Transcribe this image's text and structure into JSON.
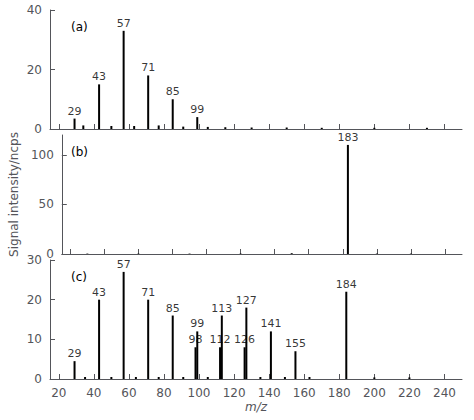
{
  "chart_data": [
    {
      "type": "bar",
      "title": "(a)",
      "x": [
        34,
        50,
        63,
        77,
        91,
        105,
        115,
        130,
        150,
        170,
        200,
        230,
        29,
        43,
        57,
        71,
        85,
        99
      ],
      "values": [
        1.2,
        1.0,
        1.0,
        1.2,
        0.8,
        0.7,
        0.6,
        0.5,
        0.5,
        0.4,
        0.4,
        0.4,
        3.5,
        15,
        33,
        18,
        10,
        4
      ],
      "color": "#000000",
      "xlim": [
        15,
        250
      ],
      "xticks": [
        20,
        40,
        60,
        80,
        100,
        120,
        140,
        160,
        180,
        200,
        220,
        240
      ],
      "ylim": [
        0,
        40
      ],
      "yticks": [
        0,
        20,
        40
      ],
      "grid": false,
      "tick_labels": "y",
      "annotations": [
        {
          "text": "29",
          "x": 29,
          "y": 3.5
        },
        {
          "text": "43",
          "x": 43,
          "y": 15
        },
        {
          "text": "57",
          "x": 57,
          "y": 33
        },
        {
          "text": "71",
          "x": 71,
          "y": 18
        },
        {
          "text": "85",
          "x": 85,
          "y": 10
        },
        {
          "text": "99",
          "x": 99,
          "y": 4
        }
      ]
    },
    {
      "type": "bar",
      "title": "(b)",
      "x": [
        30,
        60,
        90,
        120,
        150,
        200,
        220,
        183
      ],
      "values": [
        0.4,
        0.4,
        0.4,
        0.4,
        0.8,
        0.4,
        0.4,
        110
      ],
      "color": "#000000",
      "xlim": [
        15,
        250
      ],
      "xticks": [
        20,
        40,
        60,
        80,
        100,
        120,
        140,
        160,
        180,
        200,
        220,
        240
      ],
      "ylim": [
        0,
        120
      ],
      "yticks": [
        0,
        50,
        100
      ],
      "ylabel": "Signal intensity/ncps",
      "grid": false,
      "tick_labels": "y",
      "annotations": [
        {
          "text": "183",
          "x": 183,
          "y": 110
        }
      ]
    },
    {
      "type": "bar",
      "title": "(c)",
      "x": [
        35,
        50,
        64,
        77,
        91,
        105,
        135,
        149,
        163,
        200,
        220,
        29,
        43,
        57,
        71,
        85,
        98,
        99,
        112,
        113,
        126,
        127,
        141,
        155,
        184
      ],
      "values": [
        0.5,
        0.5,
        0.5,
        0.5,
        0.5,
        0.5,
        0.5,
        0.5,
        0.5,
        0.4,
        0.4,
        4.5,
        20,
        27,
        20,
        16,
        8,
        12,
        8,
        16,
        8,
        18,
        12,
        7,
        22
      ],
      "color": "#000000",
      "xlim": [
        15,
        250
      ],
      "xticks": [
        20,
        40,
        60,
        80,
        100,
        120,
        140,
        160,
        180,
        200,
        220,
        240
      ],
      "ylim": [
        0,
        30
      ],
      "yticks": [
        0,
        10,
        20,
        30
      ],
      "xlabel": "m/z",
      "grid": false,
      "annotations": [
        {
          "text": "29",
          "x": 29,
          "y": 4.5
        },
        {
          "text": "43",
          "x": 43,
          "y": 20
        },
        {
          "text": "57",
          "x": 57,
          "y": 27
        },
        {
          "text": "71",
          "x": 71,
          "y": 20
        },
        {
          "text": "85",
          "x": 85,
          "y": 16
        },
        {
          "text": "98",
          "x": 98,
          "y": 8
        },
        {
          "text": "99",
          "x": 99,
          "y": 12
        },
        {
          "text": "112",
          "x": 112,
          "y": 8
        },
        {
          "text": "113",
          "x": 113,
          "y": 16
        },
        {
          "text": "126",
          "x": 126,
          "y": 8
        },
        {
          "text": "127",
          "x": 127,
          "y": 18
        },
        {
          "text": "141",
          "x": 141,
          "y": 12
        },
        {
          "text": "155",
          "x": 155,
          "y": 7
        },
        {
          "text": "184",
          "x": 184,
          "y": 22
        }
      ]
    }
  ]
}
